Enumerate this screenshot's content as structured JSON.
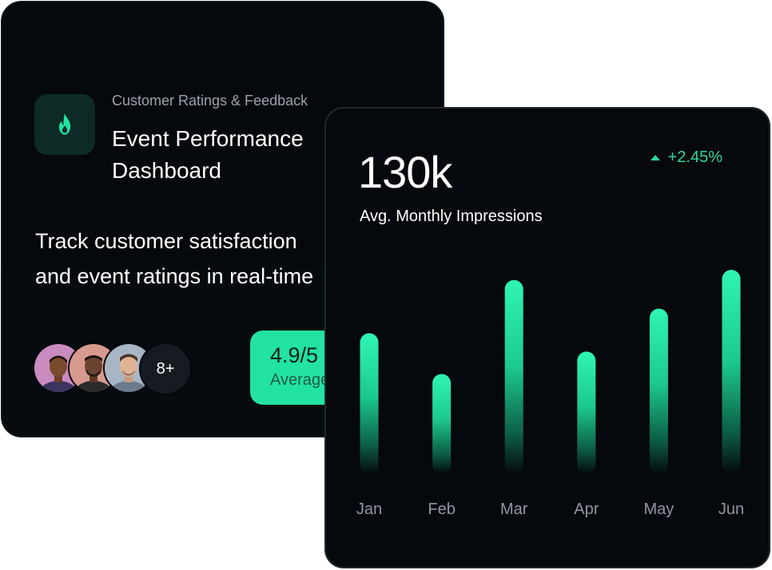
{
  "ratings_card": {
    "eyebrow": "Customer Ratings & Feedback",
    "title": "Event Performance Dashboard",
    "tagline_line1": "Track customer satisfaction",
    "tagline_line2": "and event ratings in real-time",
    "icon": "flame-icon",
    "more_count": "8+",
    "rating_score": "4.9/5",
    "rating_caption": "Average",
    "accent_color": "#22e3a1"
  },
  "impressions_card": {
    "value": "130k",
    "label": "Avg. Monthly Impressions",
    "change": "+2.45%",
    "change_direction": "up",
    "accent_color": "#2fd79d"
  },
  "chart_data": {
    "type": "bar",
    "categories": [
      "Jan",
      "Feb",
      "Mar",
      "Apr",
      "May",
      "Jun"
    ],
    "values": [
      0.69,
      0.49,
      0.95,
      0.6,
      0.81,
      1.0
    ],
    "title": "",
    "xlabel": "",
    "ylabel": "",
    "ylim": [
      0,
      1
    ],
    "grid": false
  }
}
